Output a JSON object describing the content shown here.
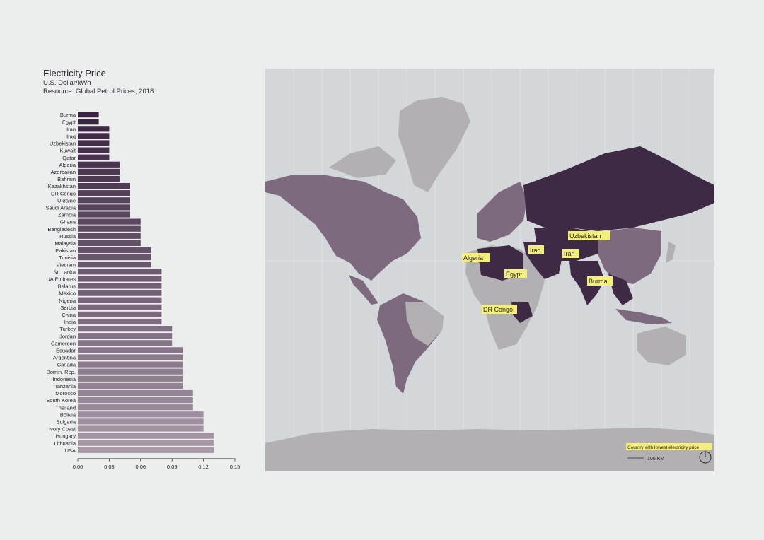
{
  "chart_data": {
    "type": "bar",
    "orientation": "horizontal",
    "title": "Electricity Price",
    "subtitle": "U.S. Dollar/kWh",
    "source": "Resource: Global Petrol Prices, 2018",
    "categories": [
      "Burma",
      "Egypt",
      "Iran",
      "Iraq",
      "Uzbekistan",
      "Kuwait",
      "Qatar",
      "Algeria",
      "Azerbaijan",
      "Bahrain",
      "Kazakhstan",
      "DR Congo",
      "Ukraine",
      "Saudi Arabia",
      "Zambia",
      "Ghana",
      "Bangladesh",
      "Russia",
      "Malaysia",
      "Pakistan",
      "Tunisia",
      "Vietnam",
      "Sri Lanka",
      "UA Emirates",
      "Belarus",
      "Mexico",
      "Nigeria",
      "Serbia",
      "China",
      "India",
      "Turkey",
      "Jordan",
      "Cameroon",
      "Ecuador",
      "Argentina",
      "Canada",
      "Domin. Rep.",
      "Indonesia",
      "Tanzania",
      "Morocco",
      "South Korea",
      "Thailand",
      "Bolivia",
      "Bulgaria",
      "Ivory Coast",
      "Hungary",
      "Lithuania",
      "USA"
    ],
    "values": [
      0.02,
      0.02,
      0.03,
      0.03,
      0.03,
      0.03,
      0.03,
      0.04,
      0.04,
      0.04,
      0.05,
      0.05,
      0.05,
      0.05,
      0.05,
      0.06,
      0.06,
      0.06,
      0.06,
      0.07,
      0.07,
      0.07,
      0.08,
      0.08,
      0.08,
      0.08,
      0.08,
      0.08,
      0.08,
      0.08,
      0.09,
      0.09,
      0.09,
      0.1,
      0.1,
      0.1,
      0.1,
      0.1,
      0.1,
      0.11,
      0.11,
      0.11,
      0.12,
      0.12,
      0.12,
      0.13,
      0.13,
      0.13
    ],
    "xticks": [
      "0.00",
      "0.03",
      "0.06",
      "0.09",
      "0.12",
      "0.15"
    ],
    "xlim": [
      0,
      0.15
    ],
    "colors": {
      "dark": "#3a2340",
      "light": "#a898a8"
    }
  },
  "map": {
    "labels": [
      "Uzbekistan",
      "Algeria",
      "Iraq",
      "Iran",
      "Egypt",
      "Burma",
      "DR Congo"
    ],
    "legend_text": "Country with lowest electricity price",
    "scale_text": "100 KM",
    "colors": {
      "ocean": "#d4d7da",
      "land": "#b3b0b4",
      "mid": "#7d6a7e",
      "dark": "#3f2a45",
      "highlight": "#f3ef7a"
    }
  }
}
